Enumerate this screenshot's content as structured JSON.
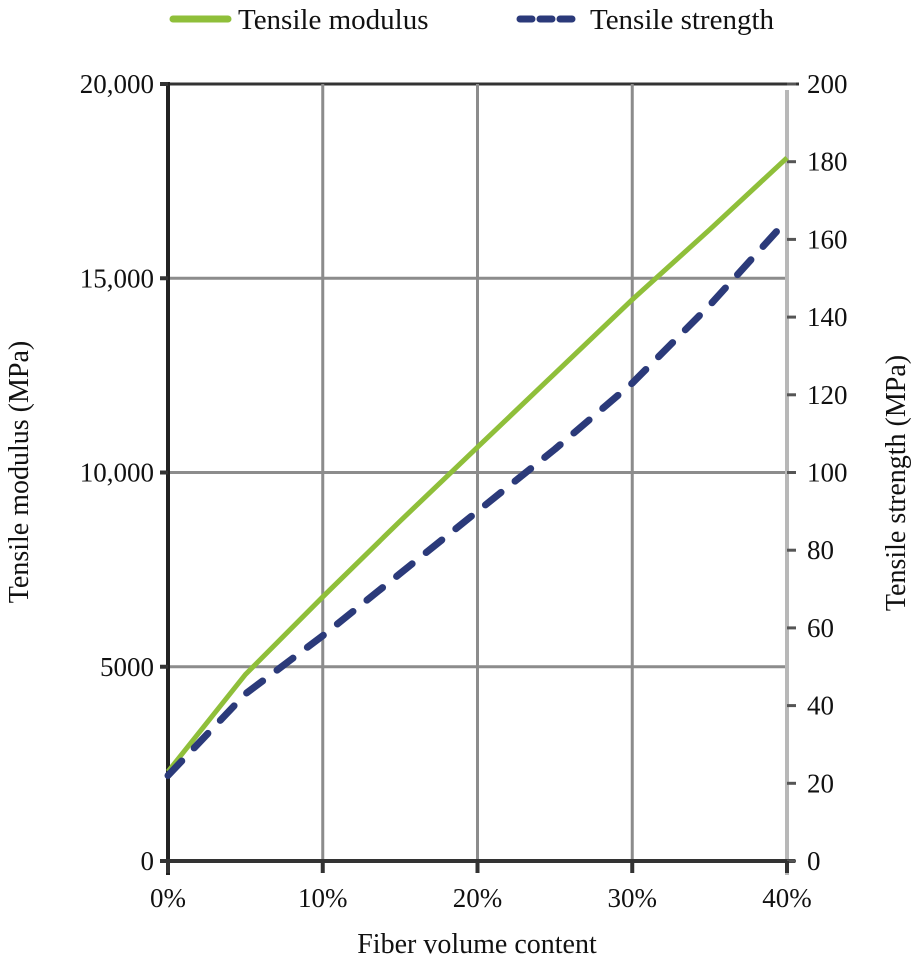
{
  "chart_data": {
    "type": "line",
    "title": "",
    "xlabel": "Fiber volume content",
    "ylabel": "Tensile modulus (MPa)",
    "y2label": "Tensile strength (MPa)",
    "xlim": [
      0,
      40
    ],
    "ylim": [
      0,
      20000
    ],
    "y2lim": [
      0,
      200
    ],
    "x_ticks": [
      "0%",
      "10%",
      "20%",
      "30%",
      "40%"
    ],
    "x_tick_values": [
      0,
      10,
      20,
      30,
      40
    ],
    "y_ticks": [
      "0",
      "5000",
      "10,000",
      "15,000",
      "20,000"
    ],
    "y_tick_values": [
      0,
      5000,
      10000,
      15000,
      20000
    ],
    "y2_ticks": [
      "0",
      "20",
      "40",
      "60",
      "80",
      "100",
      "120",
      "140",
      "160",
      "180",
      "200"
    ],
    "y2_tick_values": [
      0,
      20,
      40,
      60,
      80,
      100,
      120,
      140,
      160,
      180,
      200
    ],
    "grid": true,
    "legend_position": "top",
    "x": [
      0,
      5,
      10,
      15,
      20,
      25,
      30,
      35,
      40
    ],
    "series": [
      {
        "name": "Tensile modulus",
        "axis": "left",
        "style": "solid",
        "color": "#8fbf3a",
        "values": [
          2300,
          4800,
          6800,
          8750,
          10650,
          12550,
          14450,
          16250,
          18100
        ]
      },
      {
        "name": "Tensile strength",
        "axis": "right",
        "style": "dashed",
        "color": "#2b3a7a",
        "values": [
          22,
          43,
          58,
          74,
          90,
          106,
          123,
          143,
          165
        ]
      }
    ]
  },
  "legend": {
    "items": [
      {
        "label": "Tensile modulus",
        "color": "#8fbf3a",
        "style": "solid"
      },
      {
        "label": "Tensile strength",
        "color": "#2b3a7a",
        "style": "dashed"
      }
    ]
  },
  "colors": {
    "grid": "#8c8c8c",
    "axis_left": "#222222",
    "axis_right": "#b8b8b8"
  }
}
